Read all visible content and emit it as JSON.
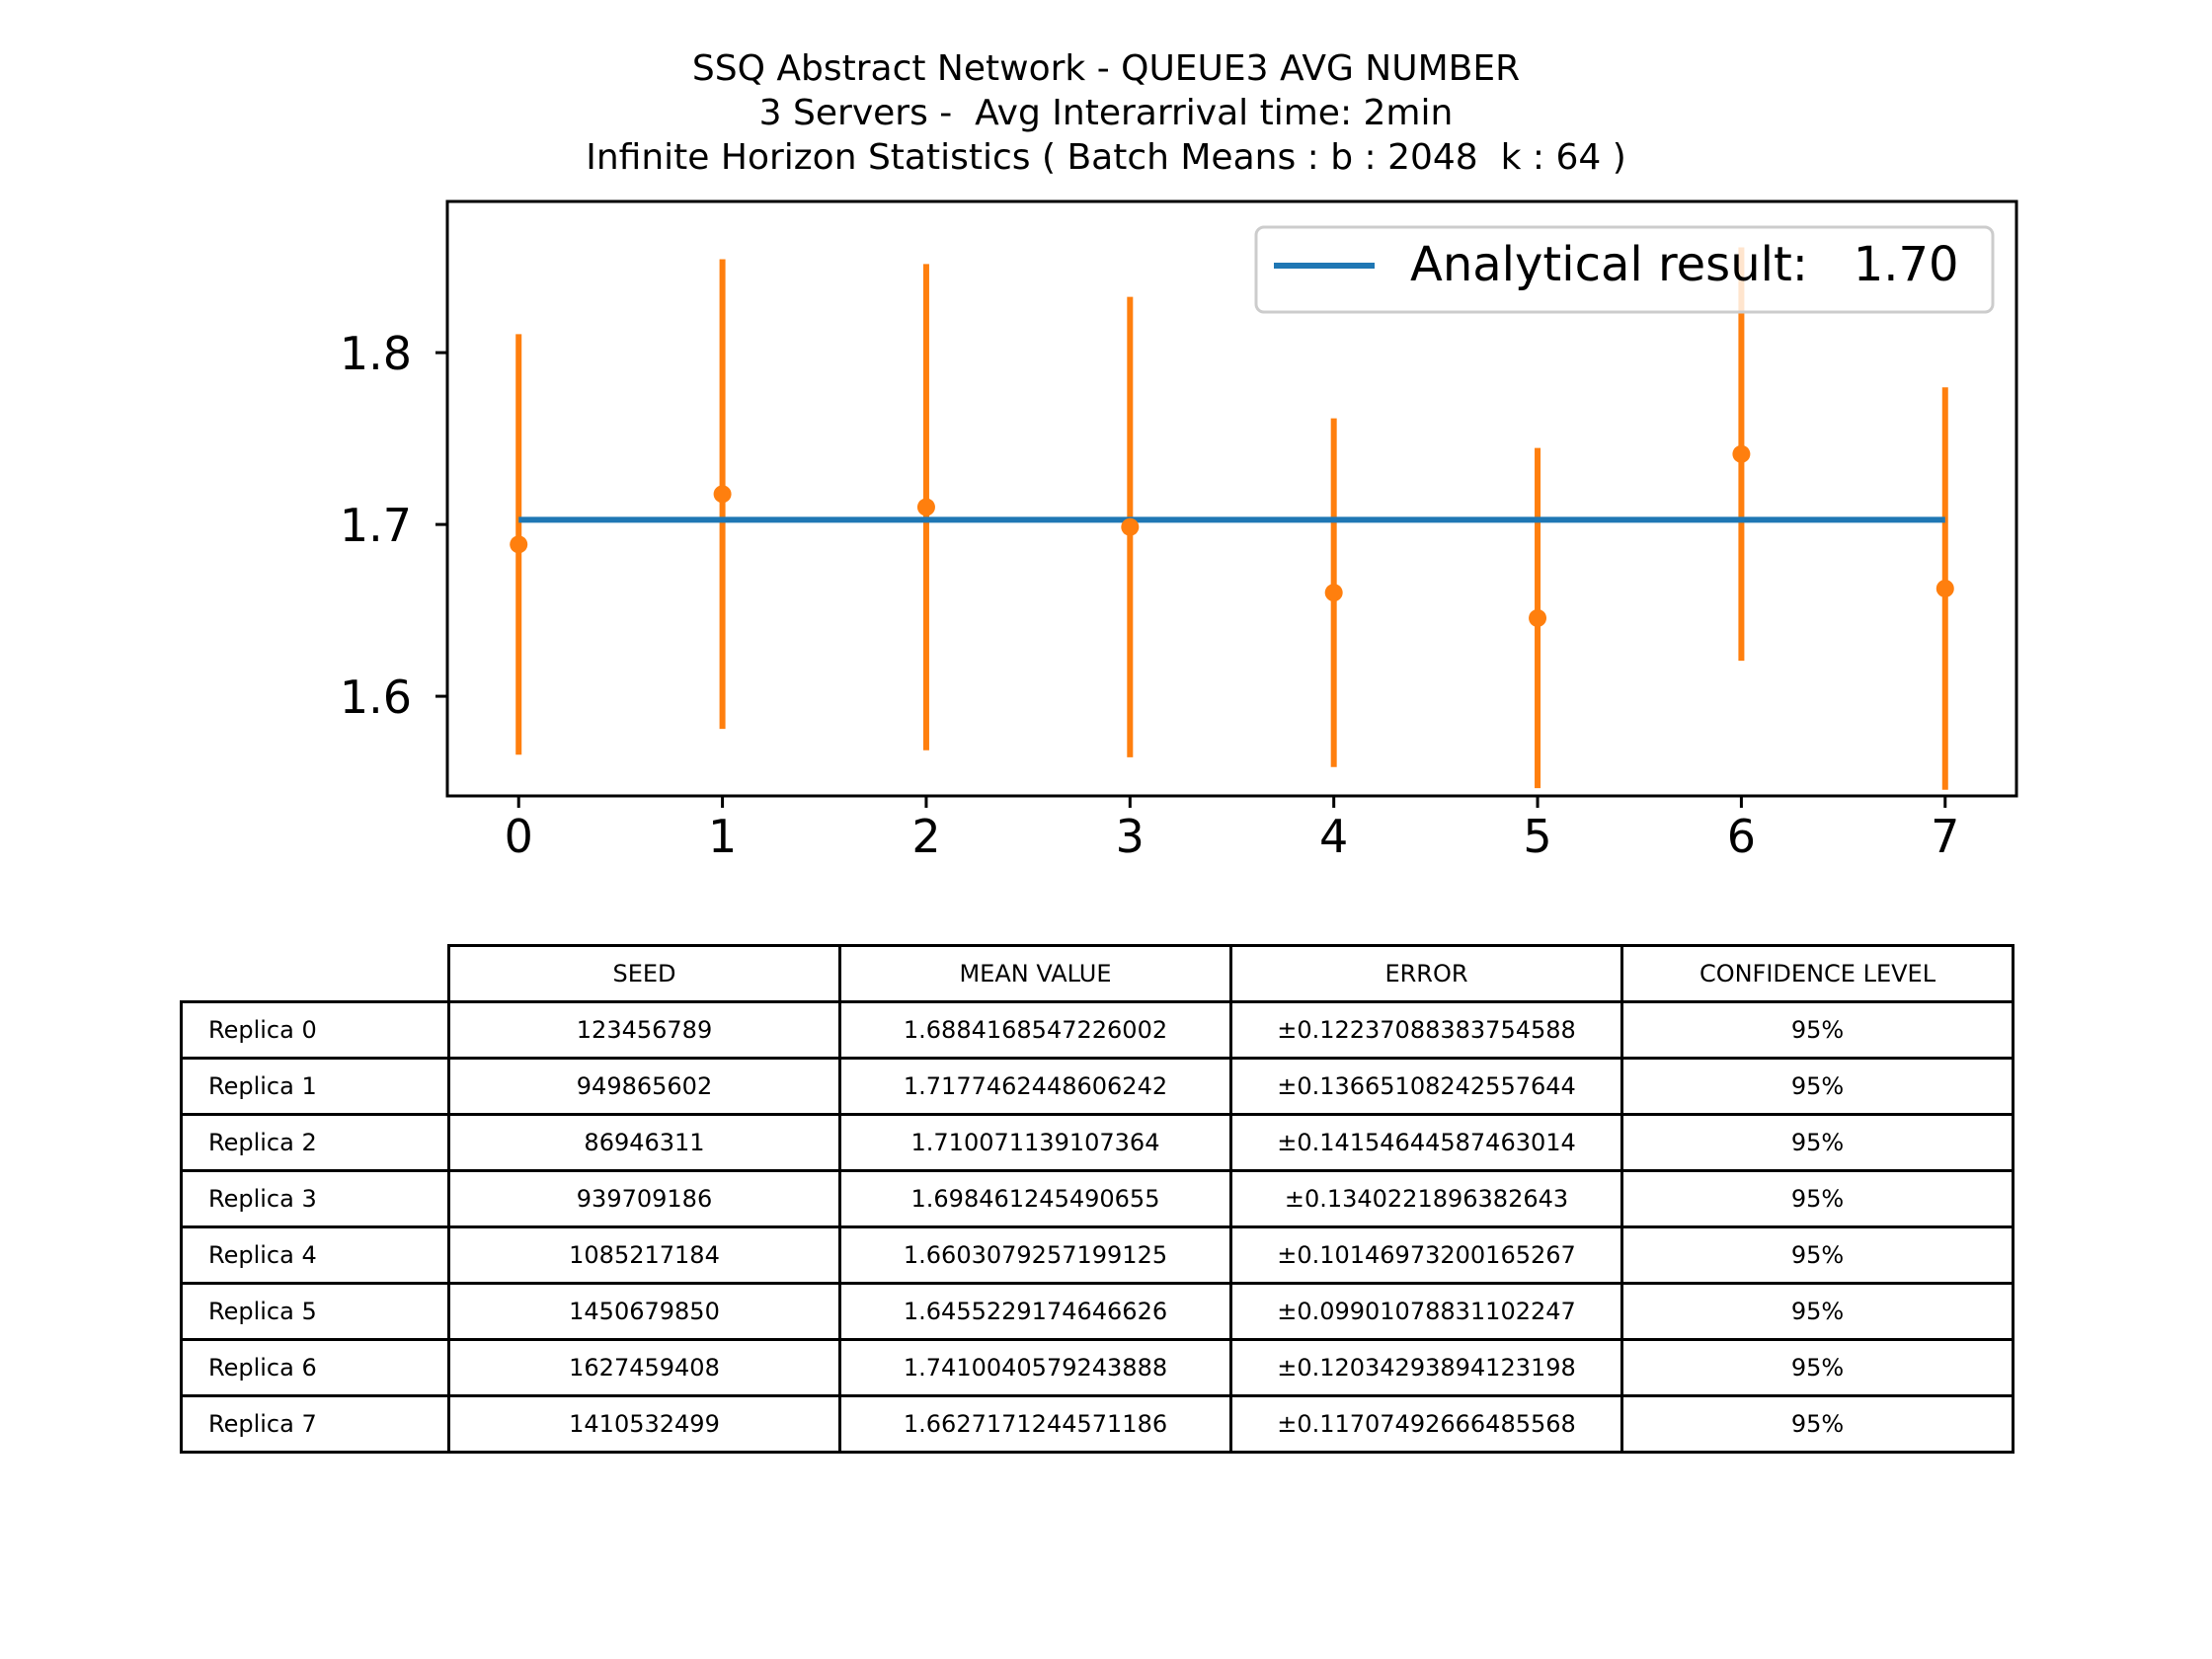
{
  "title_lines": [
    "SSQ Abstract Network - QUEUE3 AVG NUMBER",
    "3 Servers -  Avg Interarrival time: 2min",
    "Infinite Horizon Statistics ( Batch Means : b : 2048  k : 64 )"
  ],
  "chart_data": {
    "type": "scatter",
    "title": "SSQ Abstract Network - QUEUE3 AVG NUMBER\n3 Servers -  Avg Interarrival time: 2min\nInfinite Horizon Statistics ( Batch Means : b : 2048  k : 64 )",
    "x": [
      0,
      1,
      2,
      3,
      4,
      5,
      6,
      7
    ],
    "x_ticks": [
      "0",
      "1",
      "2",
      "3",
      "4",
      "5",
      "6",
      "7"
    ],
    "y_ticks": [
      "1.6",
      "1.7",
      "1.8"
    ],
    "xlim": [
      -0.35,
      7.35
    ],
    "ylim": [
      1.542,
      1.888
    ],
    "series": [
      {
        "kind": "errorbar",
        "values": [
          1.6884,
          1.7177,
          1.7101,
          1.6985,
          1.6603,
          1.6455,
          1.741,
          1.6627
        ],
        "errors": [
          0.1224,
          0.1367,
          0.1415,
          0.134,
          0.1015,
          0.099,
          0.1203,
          0.1171
        ],
        "color": "#ff7f0e"
      },
      {
        "kind": "line",
        "name": "Analytical result:   1.70",
        "x": [
          0,
          7
        ],
        "values": [
          1.7027,
          1.7027
        ],
        "color": "#1f77b4"
      }
    ],
    "legend_position": "upper right",
    "grid": false
  },
  "table": {
    "columns": [
      "SEED",
      "MEAN VALUE",
      "ERROR",
      "CONFIDENCE LEVEL"
    ],
    "rows": [
      {
        "label": "Replica 0",
        "seed": "123456789",
        "mean": "1.6884168547226002",
        "error": "±0.12237088383754588",
        "confidence": "95%"
      },
      {
        "label": "Replica 1",
        "seed": "949865602",
        "mean": "1.7177462448606242",
        "error": "±0.13665108242557644",
        "confidence": "95%"
      },
      {
        "label": "Replica 2",
        "seed": "86946311",
        "mean": "1.710071139107364",
        "error": "±0.14154644587463014",
        "confidence": "95%"
      },
      {
        "label": "Replica 3",
        "seed": "939709186",
        "mean": "1.698461245490655",
        "error": "±0.1340221896382643",
        "confidence": "95%"
      },
      {
        "label": "Replica 4",
        "seed": "1085217184",
        "mean": "1.6603079257199125",
        "error": "±0.10146973200165267",
        "confidence": "95%"
      },
      {
        "label": "Replica 5",
        "seed": "1450679850",
        "mean": "1.6455229174646626",
        "error": "±0.09901078831102247",
        "confidence": "95%"
      },
      {
        "label": "Replica 6",
        "seed": "1627459408",
        "mean": "1.7410040579243888",
        "error": "±0.12034293894123198",
        "confidence": "95%"
      },
      {
        "label": "Replica 7",
        "seed": "1410532499",
        "mean": "1.6627171244571186",
        "error": "±0.11707492666485568",
        "confidence": "95%"
      }
    ]
  }
}
